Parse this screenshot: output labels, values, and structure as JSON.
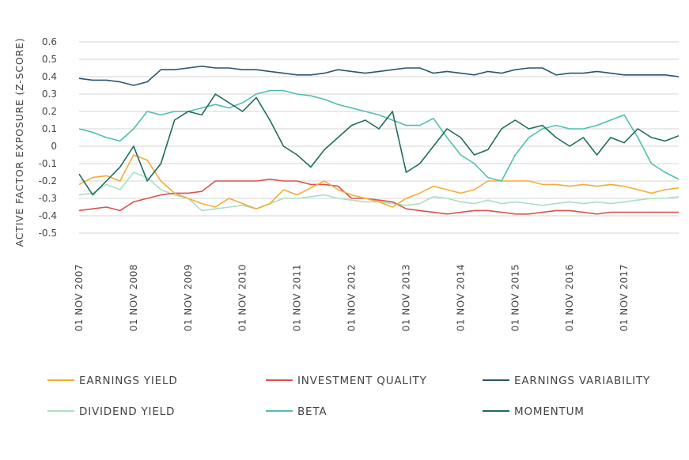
{
  "chart_data": {
    "type": "line",
    "ylabel": "ACTIVE FACTOR EXPOSURE (Z-SCORE)",
    "xlabel": "",
    "ylim": [
      -0.5,
      0.6
    ],
    "yticks": [
      "0.6",
      "0.5",
      "0.4",
      "0.3",
      "0.2",
      "0.1",
      "0",
      "-0.1",
      "-0.2",
      "-0.3",
      "-0.4",
      "-0.5"
    ],
    "xticks": [
      "01 NOV 2007",
      "01 NOV 2008",
      "01 NOV 2009",
      "01 NOV 2010",
      "01 NOV 2011",
      "01 NOV 2012",
      "01 NOV 2013",
      "01 NOV 2014",
      "01 NOV 2015",
      "01 NOV 2016",
      "01 NOV 2017"
    ],
    "x_range": [
      "2007-11",
      "2018-11"
    ],
    "grid": true,
    "legend_position": "bottom",
    "series": [
      {
        "name": "EARNINGS YIELD",
        "color": "#f5ab35",
        "x": [
          "2007-11",
          "2008-02",
          "2008-05",
          "2008-08",
          "2008-11",
          "2009-02",
          "2009-05",
          "2009-08",
          "2009-11",
          "2010-02",
          "2010-05",
          "2010-08",
          "2010-11",
          "2011-02",
          "2011-05",
          "2011-08",
          "2011-11",
          "2012-02",
          "2012-05",
          "2012-08",
          "2012-11",
          "2013-02",
          "2013-05",
          "2013-08",
          "2013-11",
          "2014-02",
          "2014-05",
          "2014-08",
          "2014-11",
          "2015-02",
          "2015-05",
          "2015-08",
          "2015-11",
          "2016-02",
          "2016-05",
          "2016-08",
          "2016-11",
          "2017-02",
          "2017-05",
          "2017-08",
          "2017-11",
          "2018-02",
          "2018-05",
          "2018-08",
          "2018-11"
        ],
        "values": [
          -0.22,
          -0.18,
          -0.17,
          -0.2,
          -0.05,
          -0.08,
          -0.2,
          -0.27,
          -0.3,
          -0.33,
          -0.35,
          -0.3,
          -0.33,
          -0.36,
          -0.33,
          -0.25,
          -0.28,
          -0.24,
          -0.2,
          -0.25,
          -0.28,
          -0.3,
          -0.32,
          -0.35,
          -0.3,
          -0.27,
          -0.23,
          -0.25,
          -0.27,
          -0.25,
          -0.2,
          -0.2,
          -0.2,
          -0.2,
          -0.22,
          -0.22,
          -0.23,
          -0.22,
          -0.23,
          -0.22,
          -0.23,
          -0.25,
          -0.27,
          -0.25,
          -0.24
        ]
      },
      {
        "name": "INVESTMENT QUALITY",
        "color": "#d9534f",
        "x": [
          "2007-11",
          "2008-02",
          "2008-05",
          "2008-08",
          "2008-11",
          "2009-02",
          "2009-05",
          "2009-08",
          "2009-11",
          "2010-02",
          "2010-05",
          "2010-08",
          "2010-11",
          "2011-02",
          "2011-05",
          "2011-08",
          "2011-11",
          "2012-02",
          "2012-05",
          "2012-08",
          "2012-11",
          "2013-02",
          "2013-05",
          "2013-08",
          "2013-11",
          "2014-02",
          "2014-05",
          "2014-08",
          "2014-11",
          "2015-02",
          "2015-05",
          "2015-08",
          "2015-11",
          "2016-02",
          "2016-05",
          "2016-08",
          "2016-11",
          "2017-02",
          "2017-05",
          "2017-08",
          "2017-11",
          "2018-02",
          "2018-05",
          "2018-08",
          "2018-11"
        ],
        "values": [
          -0.37,
          -0.36,
          -0.35,
          -0.37,
          -0.32,
          -0.3,
          -0.28,
          -0.27,
          -0.27,
          -0.26,
          -0.2,
          -0.2,
          -0.2,
          -0.2,
          -0.19,
          -0.2,
          -0.2,
          -0.22,
          -0.22,
          -0.23,
          -0.3,
          -0.3,
          -0.31,
          -0.32,
          -0.36,
          -0.37,
          -0.38,
          -0.39,
          -0.38,
          -0.37,
          -0.37,
          -0.38,
          -0.39,
          -0.39,
          -0.38,
          -0.37,
          -0.37,
          -0.38,
          -0.39,
          -0.38,
          -0.38,
          -0.38,
          -0.38,
          -0.38,
          -0.38
        ]
      },
      {
        "name": "EARNINGS VARIABILITY",
        "color": "#2b5570",
        "x": [
          "2007-11",
          "2008-02",
          "2008-05",
          "2008-08",
          "2008-11",
          "2009-02",
          "2009-05",
          "2009-08",
          "2009-11",
          "2010-02",
          "2010-05",
          "2010-08",
          "2010-11",
          "2011-02",
          "2011-05",
          "2011-08",
          "2011-11",
          "2012-02",
          "2012-05",
          "2012-08",
          "2012-11",
          "2013-02",
          "2013-05",
          "2013-08",
          "2013-11",
          "2014-02",
          "2014-05",
          "2014-08",
          "2014-11",
          "2015-02",
          "2015-05",
          "2015-08",
          "2015-11",
          "2016-02",
          "2016-05",
          "2016-08",
          "2016-11",
          "2017-02",
          "2017-05",
          "2017-08",
          "2017-11",
          "2018-02",
          "2018-05",
          "2018-08",
          "2018-11"
        ],
        "values": [
          0.39,
          0.38,
          0.38,
          0.37,
          0.35,
          0.37,
          0.44,
          0.44,
          0.45,
          0.46,
          0.45,
          0.45,
          0.44,
          0.44,
          0.43,
          0.42,
          0.41,
          0.41,
          0.42,
          0.44,
          0.43,
          0.42,
          0.43,
          0.44,
          0.45,
          0.45,
          0.42,
          0.43,
          0.42,
          0.41,
          0.43,
          0.42,
          0.44,
          0.45,
          0.45,
          0.41,
          0.42,
          0.42,
          0.43,
          0.42,
          0.41,
          0.41,
          0.41,
          0.41,
          0.4
        ]
      },
      {
        "name": "DIVIDEND YIELD",
        "color": "#a8e0c2",
        "x": [
          "2007-11",
          "2008-02",
          "2008-05",
          "2008-08",
          "2008-11",
          "2009-02",
          "2009-05",
          "2009-08",
          "2009-11",
          "2010-02",
          "2010-05",
          "2010-08",
          "2010-11",
          "2011-02",
          "2011-05",
          "2011-08",
          "2011-11",
          "2012-02",
          "2012-05",
          "2012-08",
          "2012-11",
          "2013-02",
          "2013-05",
          "2013-08",
          "2013-11",
          "2014-02",
          "2014-05",
          "2014-08",
          "2014-11",
          "2015-02",
          "2015-05",
          "2015-08",
          "2015-11",
          "2016-02",
          "2016-05",
          "2016-08",
          "2016-11",
          "2017-02",
          "2017-05",
          "2017-08",
          "2017-11",
          "2018-02",
          "2018-05",
          "2018-08",
          "2018-11"
        ],
        "values": [
          -0.28,
          -0.27,
          -0.22,
          -0.25,
          -0.15,
          -0.18,
          -0.25,
          -0.28,
          -0.3,
          -0.37,
          -0.36,
          -0.35,
          -0.34,
          -0.36,
          -0.33,
          -0.3,
          -0.3,
          -0.29,
          -0.28,
          -0.3,
          -0.31,
          -0.32,
          -0.32,
          -0.33,
          -0.34,
          -0.33,
          -0.29,
          -0.3,
          -0.32,
          -0.33,
          -0.31,
          -0.33,
          -0.32,
          -0.33,
          -0.34,
          -0.33,
          -0.32,
          -0.33,
          -0.32,
          -0.33,
          -0.32,
          -0.31,
          -0.3,
          -0.3,
          -0.29
        ]
      },
      {
        "name": "BETA",
        "color": "#4dbfb0",
        "x": [
          "2007-11",
          "2008-02",
          "2008-05",
          "2008-08",
          "2008-11",
          "2009-02",
          "2009-05",
          "2009-08",
          "2009-11",
          "2010-02",
          "2010-05",
          "2010-08",
          "2010-11",
          "2011-02",
          "2011-05",
          "2011-08",
          "2011-11",
          "2012-02",
          "2012-05",
          "2012-08",
          "2012-11",
          "2013-02",
          "2013-05",
          "2013-08",
          "2013-11",
          "2014-02",
          "2014-05",
          "2014-08",
          "2014-11",
          "2015-02",
          "2015-05",
          "2015-08",
          "2015-11",
          "2016-02",
          "2016-05",
          "2016-08",
          "2016-11",
          "2017-02",
          "2017-05",
          "2017-08",
          "2017-11",
          "2018-02",
          "2018-05",
          "2018-08",
          "2018-11"
        ],
        "values": [
          0.1,
          0.08,
          0.05,
          0.03,
          0.1,
          0.2,
          0.18,
          0.2,
          0.2,
          0.22,
          0.24,
          0.22,
          0.25,
          0.3,
          0.32,
          0.32,
          0.3,
          0.29,
          0.27,
          0.24,
          0.22,
          0.2,
          0.18,
          0.15,
          0.12,
          0.12,
          0.16,
          0.05,
          -0.05,
          -0.1,
          -0.18,
          -0.2,
          -0.05,
          0.05,
          0.1,
          0.12,
          0.1,
          0.1,
          0.12,
          0.15,
          0.18,
          0.05,
          -0.1,
          -0.15,
          -0.19
        ]
      },
      {
        "name": "MOMENTUM",
        "color": "#1f6b5e",
        "x": [
          "2007-11",
          "2008-02",
          "2008-05",
          "2008-08",
          "2008-11",
          "2009-02",
          "2009-05",
          "2009-08",
          "2009-11",
          "2010-02",
          "2010-05",
          "2010-08",
          "2010-11",
          "2011-02",
          "2011-05",
          "2011-08",
          "2011-11",
          "2012-02",
          "2012-05",
          "2012-08",
          "2012-11",
          "2013-02",
          "2013-05",
          "2013-08",
          "2013-11",
          "2014-02",
          "2014-05",
          "2014-08",
          "2014-11",
          "2015-02",
          "2015-05",
          "2015-08",
          "2015-11",
          "2016-02",
          "2016-05",
          "2016-08",
          "2016-11",
          "2017-02",
          "2017-05",
          "2017-08",
          "2017-11",
          "2018-02",
          "2018-05",
          "2018-08",
          "2018-11"
        ],
        "values": [
          -0.16,
          -0.28,
          -0.2,
          -0.12,
          0.0,
          -0.2,
          -0.1,
          0.15,
          0.2,
          0.18,
          0.3,
          0.25,
          0.2,
          0.28,
          0.15,
          0.0,
          -0.05,
          -0.12,
          -0.02,
          0.05,
          0.12,
          0.15,
          0.1,
          0.2,
          -0.15,
          -0.1,
          0.0,
          0.1,
          0.05,
          -0.05,
          -0.02,
          0.1,
          0.15,
          0.1,
          0.12,
          0.05,
          0.0,
          0.05,
          -0.05,
          0.05,
          0.02,
          0.1,
          0.05,
          0.03,
          0.06
        ]
      }
    ],
    "legend_layout": [
      [
        "EARNINGS YIELD",
        "INVESTMENT QUALITY",
        "EARNINGS VARIABILITY"
      ],
      [
        "DIVIDEND YIELD",
        "BETA",
        "MOMENTUM"
      ]
    ]
  }
}
